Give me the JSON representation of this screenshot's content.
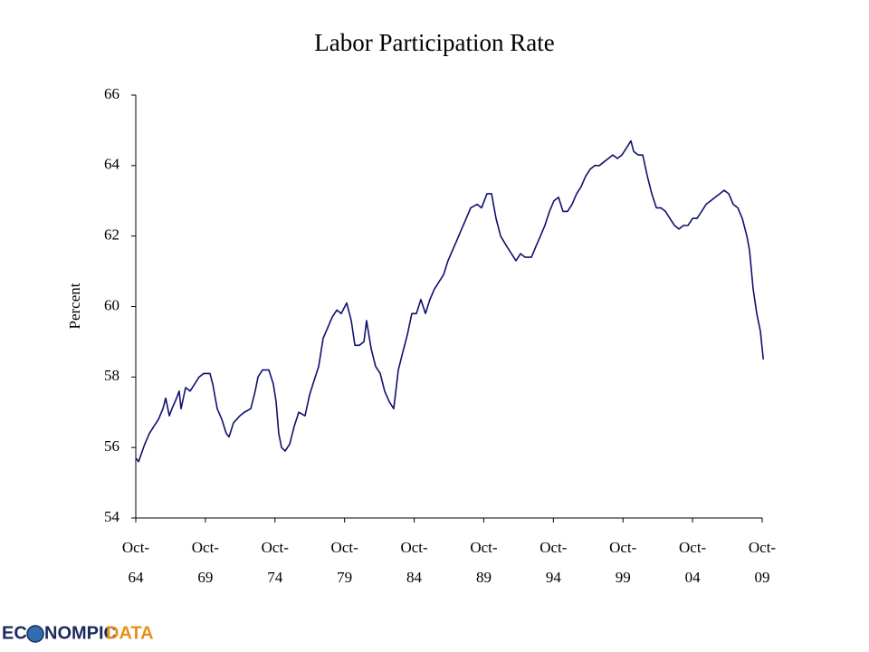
{
  "chart_data": {
    "type": "line",
    "title": "Labor Participation Rate",
    "ylabel": "Percent",
    "logo": [
      "EC",
      "NOMPIC",
      "DATA"
    ],
    "color": "#10106e",
    "xlim": [
      1964.75,
      2009.75
    ],
    "ylim": [
      54,
      66
    ],
    "yticks": [
      54,
      56,
      58,
      60,
      62,
      64,
      66
    ],
    "xticks": [
      {
        "value": 1964.75,
        "label": "Oct-64"
      },
      {
        "value": 1969.75,
        "label": "Oct-69"
      },
      {
        "value": 1974.75,
        "label": "Oct-74"
      },
      {
        "value": 1979.75,
        "label": "Oct-79"
      },
      {
        "value": 1984.75,
        "label": "Oct-84"
      },
      {
        "value": 1989.75,
        "label": "Oct-89"
      },
      {
        "value": 1994.75,
        "label": "Oct-94"
      },
      {
        "value": 1999.75,
        "label": "Oct-99"
      },
      {
        "value": 2004.75,
        "label": "Oct-04"
      },
      {
        "value": 2009.75,
        "label": "Oct-09"
      }
    ],
    "x": [
      1964.75,
      1964.95,
      1965.4,
      1965.73,
      1966.05,
      1966.38,
      1966.7,
      1966.9,
      1967.16,
      1967.35,
      1967.68,
      1967.87,
      1968.0,
      1968.33,
      1968.65,
      1968.98,
      1969.3,
      1969.63,
      1970.08,
      1970.28,
      1970.6,
      1970.93,
      1971.25,
      1971.45,
      1971.77,
      1972.23,
      1972.55,
      1973.01,
      1973.33,
      1973.53,
      1973.85,
      1974.31,
      1974.63,
      1974.83,
      1975.02,
      1975.22,
      1975.48,
      1975.81,
      1976.13,
      1976.46,
      1976.91,
      1977.24,
      1977.56,
      1977.89,
      1978.21,
      1978.54,
      1978.86,
      1979.19,
      1979.51,
      1979.9,
      1980.23,
      1980.49,
      1980.81,
      1981.14,
      1981.33,
      1981.66,
      1981.98,
      1982.31,
      1982.63,
      1982.96,
      1983.28,
      1983.61,
      1983.93,
      1984.26,
      1984.58,
      1984.91,
      1985.23,
      1985.56,
      1985.88,
      1986.21,
      1986.53,
      1986.86,
      1987.18,
      1987.51,
      1987.84,
      1988.16,
      1988.49,
      1988.81,
      1989.27,
      1989.59,
      1989.98,
      1990.31,
      1990.63,
      1990.96,
      1991.41,
      1991.74,
      1992.06,
      1992.39,
      1992.71,
      1993.17,
      1993.49,
      1993.82,
      1994.14,
      1994.47,
      1994.79,
      1995.12,
      1995.44,
      1995.77,
      1996.09,
      1996.42,
      1996.74,
      1997.07,
      1997.4,
      1997.72,
      1998.05,
      1998.37,
      1998.7,
      1999.02,
      1999.35,
      1999.67,
      2000.0,
      2000.32,
      2000.52,
      2000.85,
      2001.17,
      2001.5,
      2001.82,
      2002.15,
      2002.47,
      2002.8,
      2003.12,
      2003.45,
      2003.77,
      2004.1,
      2004.42,
      2004.75,
      2005.07,
      2005.4,
      2005.72,
      2006.05,
      2006.37,
      2006.7,
      2007.02,
      2007.35,
      2007.67,
      2008.0,
      2008.32,
      2008.65,
      2008.84,
      2009.1,
      2009.36,
      2009.62,
      2009.83
    ],
    "values": [
      55.7,
      55.6,
      56.1,
      56.4,
      56.6,
      56.8,
      57.1,
      57.4,
      56.9,
      57.1,
      57.4,
      57.6,
      57.1,
      57.7,
      57.6,
      57.8,
      58.0,
      58.1,
      58.1,
      57.8,
      57.1,
      56.8,
      56.4,
      56.3,
      56.7,
      56.9,
      57.0,
      57.1,
      57.6,
      58.0,
      58.2,
      58.2,
      57.8,
      57.3,
      56.4,
      56.0,
      55.9,
      56.1,
      56.6,
      57.0,
      56.9,
      57.5,
      57.9,
      58.3,
      59.1,
      59.4,
      59.7,
      59.9,
      59.8,
      60.1,
      59.6,
      58.9,
      58.9,
      59.0,
      59.6,
      58.8,
      58.3,
      58.1,
      57.6,
      57.3,
      57.1,
      58.2,
      58.7,
      59.2,
      59.8,
      59.8,
      60.2,
      59.8,
      60.2,
      60.5,
      60.7,
      60.9,
      61.3,
      61.6,
      61.9,
      62.2,
      62.5,
      62.8,
      62.9,
      62.8,
      63.2,
      63.2,
      62.5,
      62.0,
      61.7,
      61.5,
      61.3,
      61.5,
      61.4,
      61.4,
      61.7,
      62.0,
      62.3,
      62.7,
      63.0,
      63.1,
      62.7,
      62.7,
      62.9,
      63.2,
      63.4,
      63.7,
      63.9,
      64.0,
      64.0,
      64.1,
      64.2,
      64.3,
      64.2,
      64.3,
      64.5,
      64.7,
      64.4,
      64.3,
      64.3,
      63.7,
      63.2,
      62.8,
      62.8,
      62.7,
      62.5,
      62.3,
      62.2,
      62.3,
      62.3,
      62.5,
      62.5,
      62.7,
      62.9,
      63.0,
      63.1,
      63.2,
      63.3,
      63.2,
      62.9,
      62.8,
      62.5,
      62.0,
      61.6,
      60.5,
      59.8,
      59.3,
      58.5
    ]
  }
}
